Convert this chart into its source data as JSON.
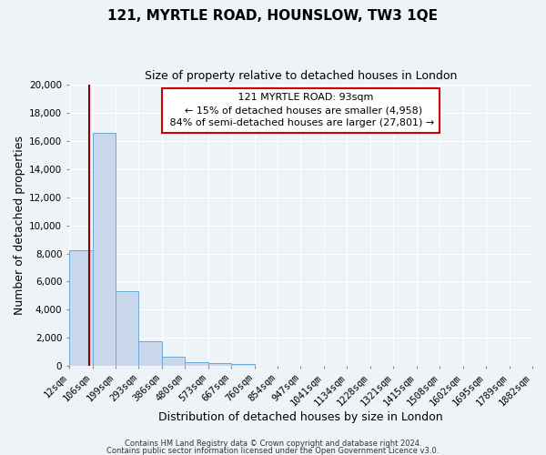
{
  "title": "121, MYRTLE ROAD, HOUNSLOW, TW3 1QE",
  "subtitle": "Size of property relative to detached houses in London",
  "xlabel": "Distribution of detached houses by size in London",
  "ylabel": "Number of detached properties",
  "bin_labels": [
    "12sqm",
    "106sqm",
    "199sqm",
    "293sqm",
    "386sqm",
    "480sqm",
    "573sqm",
    "667sqm",
    "760sqm",
    "854sqm",
    "947sqm",
    "1041sqm",
    "1134sqm",
    "1228sqm",
    "1321sqm",
    "1415sqm",
    "1508sqm",
    "1602sqm",
    "1695sqm",
    "1789sqm",
    "1882sqm"
  ],
  "bin_edges": [
    12,
    106,
    199,
    293,
    386,
    480,
    573,
    667,
    760,
    854,
    947,
    1041,
    1134,
    1228,
    1321,
    1415,
    1508,
    1602,
    1695,
    1789,
    1882
  ],
  "bar_heights": [
    8200,
    16600,
    5300,
    1750,
    680,
    280,
    180,
    130,
    0,
    0,
    0,
    0,
    0,
    0,
    0,
    0,
    0,
    0,
    0,
    0
  ],
  "bar_color": "#c8d8ea",
  "bar_edge_color": "#6aaad4",
  "property_line_x": 93,
  "vline_color": "#8b0000",
  "annotation_title": "121 MYRTLE ROAD: 93sqm",
  "annotation_line1": "← 15% of detached houses are smaller (4,958)",
  "annotation_line2": "84% of semi-detached houses are larger (27,801) →",
  "annotation_box_fc": "#ffffff",
  "annotation_box_ec": "#cc0000",
  "ylim": [
    0,
    20000
  ],
  "yticks": [
    0,
    2000,
    4000,
    6000,
    8000,
    10000,
    12000,
    14000,
    16000,
    18000,
    20000
  ],
  "footer1": "Contains HM Land Registry data © Crown copyright and database right 2024.",
  "footer2": "Contains public sector information licensed under the Open Government Licence v3.0.",
  "background_color": "#eef3f8",
  "grid_color": "#ffffff",
  "title_fontsize": 11,
  "subtitle_fontsize": 9,
  "axis_label_fontsize": 9,
  "tick_fontsize": 7.5,
  "annotation_fontsize": 8,
  "footer_fontsize": 6
}
